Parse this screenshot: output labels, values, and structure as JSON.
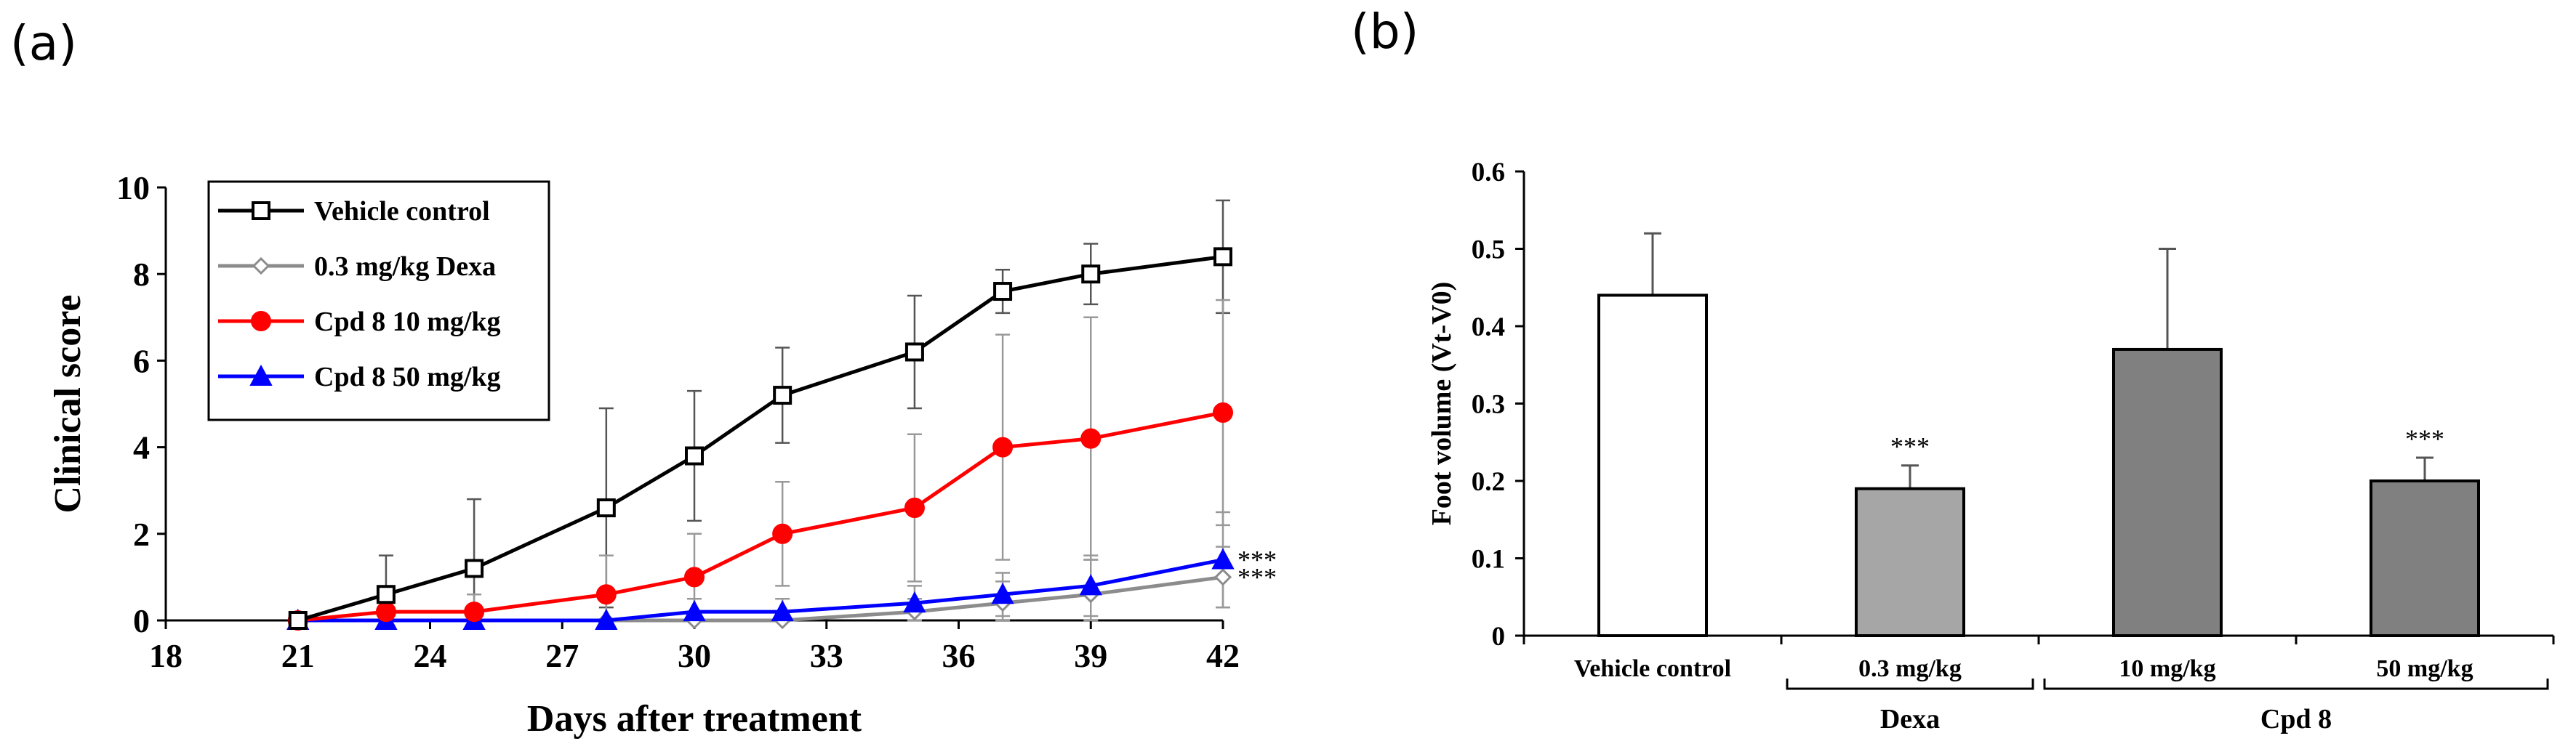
{
  "panel_labels": {
    "a": "(a)",
    "b": "(b)"
  },
  "chart_data": [
    {
      "type": "line",
      "panel": "(a)",
      "title": "",
      "xlabel": "Days after treatment",
      "ylabel": "Clinical score",
      "xlim": [
        18,
        42
      ],
      "ylim": [
        0,
        10
      ],
      "xticks": [
        18,
        21,
        24,
        27,
        30,
        33,
        36,
        39,
        42
      ],
      "yticks": [
        0,
        2,
        4,
        6,
        8,
        10
      ],
      "legend_position": "top-left",
      "x": [
        21,
        23,
        25,
        28,
        30,
        32,
        35,
        37,
        39,
        42
      ],
      "series": [
        {
          "name": "Vehicle control",
          "color": "#000000",
          "marker": "square",
          "values": [
            0,
            0.6,
            1.2,
            2.6,
            3.8,
            5.2,
            6.2,
            7.6,
            8.0,
            8.4
          ],
          "error": [
            0,
            0.9,
            1.6,
            2.3,
            1.5,
            1.1,
            1.3,
            0.5,
            0.7,
            1.3
          ],
          "significance": ""
        },
        {
          "name": "0.3 mg/kg Dexa",
          "color": "#8c8c8c",
          "marker": "diamond",
          "values": [
            0,
            0,
            0,
            0,
            0,
            0,
            0.2,
            0.4,
            0.6,
            1.0
          ],
          "error": [
            0,
            0,
            0,
            0,
            0,
            0,
            0.3,
            0.5,
            0.8,
            0.7
          ],
          "significance": "***"
        },
        {
          "name": "Cpd 8 10 mg/kg",
          "color": "#ff0000",
          "marker": "circle",
          "values": [
            0,
            0.2,
            0.2,
            0.6,
            1.0,
            2.0,
            2.6,
            4.0,
            4.2,
            4.8
          ],
          "error": [
            0,
            0,
            0.4,
            0.9,
            1.0,
            1.2,
            1.7,
            2.6,
            2.8,
            2.6
          ],
          "significance": ""
        },
        {
          "name": "Cpd 8  50 mg/kg",
          "color": "#0000ff",
          "marker": "triangle",
          "values": [
            0,
            0,
            0,
            0,
            0.2,
            0.2,
            0.4,
            0.6,
            0.8,
            1.4
          ],
          "error": [
            0,
            0,
            0,
            0,
            0.3,
            0.3,
            0.4,
            0.5,
            0.7,
            1.1
          ],
          "significance": "***"
        }
      ]
    },
    {
      "type": "bar",
      "panel": "(b)",
      "title": "",
      "xlabel": "",
      "ylabel": "Foot volume (Vt-V0)",
      "ylim": [
        0,
        0.6
      ],
      "yticks": [
        "0",
        "0.1",
        "0.2",
        "0.3",
        "0.4",
        "0.5",
        "0.6"
      ],
      "categories": [
        "Vehicle control",
        "0.3 mg/kg",
        "10 mg/kg",
        "50 mg/kg"
      ],
      "values": [
        0.44,
        0.19,
        0.37,
        0.2
      ],
      "error": [
        0.08,
        0.03,
        0.13,
        0.03
      ],
      "colors": [
        "#ffffff",
        "#a6a6a6",
        "#808080",
        "#808080"
      ],
      "significance": [
        "",
        "***",
        "",
        "***"
      ],
      "groups": [
        {
          "label": "Dexa",
          "from": 1,
          "to": 1
        },
        {
          "label": "Cpd 8",
          "from": 2,
          "to": 3
        }
      ]
    }
  ]
}
